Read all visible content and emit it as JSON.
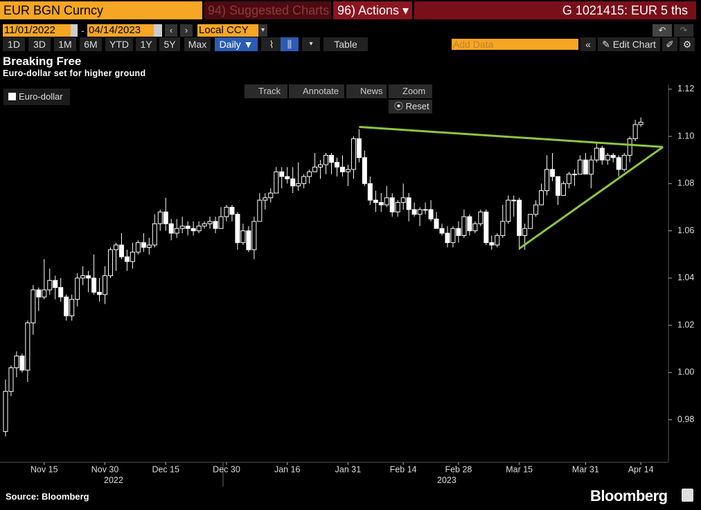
{
  "ui": {
    "security": "EUR BGN Curncy",
    "suggested": "94) Suggested Charts",
    "actions": "96) Actions ▾",
    "ticker_info": "G 1021415: EUR 5 ths",
    "start_date": "11/01/2022",
    "end_date": "04/14/2023",
    "currency": "Local CCY",
    "periods": [
      "1D",
      "3D",
      "1M",
      "6M",
      "YTD",
      "1Y",
      "5Y",
      "Max"
    ],
    "frequency": "Daily ▼",
    "table": "Table",
    "add_data": "Add Data",
    "edit_chart": "Edit Chart",
    "tools": [
      "Track",
      "Annotate",
      "News",
      "Zoom"
    ],
    "reset": "Reset"
  },
  "chart_data": {
    "type": "candlestick",
    "title": "Breaking Free",
    "subtitle": "Euro-dollar set for higher ground",
    "source": "Source: Bloomberg",
    "brand": "Bloomberg",
    "name": "Euro-dollar",
    "color": "#ffffff",
    "x_year_labels": [
      "2022",
      "2023"
    ],
    "xlim": [
      "2022-11-03",
      "2023-04-21"
    ],
    "xticks": [
      {
        "value": "2022-11-15",
        "label": "Nov 15"
      },
      {
        "value": "2022-11-30",
        "label": "Nov 30"
      },
      {
        "value": "2022-12-15",
        "label": "Dec 15"
      },
      {
        "value": "2022-12-30",
        "label": "Dec 30"
      },
      {
        "value": "2023-01-16",
        "label": "Jan 16"
      },
      {
        "value": "2023-01-31",
        "label": "Jan 31"
      },
      {
        "value": "2023-02-14",
        "label": "Feb 14"
      },
      {
        "value": "2023-02-28",
        "label": "Feb 28"
      },
      {
        "value": "2023-03-15",
        "label": "Mar 15"
      },
      {
        "value": "2023-03-31",
        "label": "Mar 31"
      },
      {
        "value": "2023-04-14",
        "label": "Apr 14"
      }
    ],
    "ylim": [
      0.962,
      1.122
    ],
    "yticks": [
      0.98,
      {
        "value": 1.0,
        "label": "1.00"
      },
      1.02,
      1.04,
      1.06,
      1.08,
      {
        "value": 1.1,
        "label": "1.10"
      },
      1.12
    ],
    "x": [
      "2022-11-04",
      "2022-11-07",
      "2022-11-08",
      "2022-11-09",
      "2022-11-10",
      "2022-11-11",
      "2022-11-14",
      "2022-11-15",
      "2022-11-16",
      "2022-11-17",
      "2022-11-18",
      "2022-11-21",
      "2022-11-22",
      "2022-11-23",
      "2022-11-24",
      "2022-11-25",
      "2022-11-28",
      "2022-11-29",
      "2022-11-30",
      "2022-12-01",
      "2022-12-02",
      "2022-12-05",
      "2022-12-06",
      "2022-12-07",
      "2022-12-08",
      "2022-12-09",
      "2022-12-12",
      "2022-12-13",
      "2022-12-14",
      "2022-12-15",
      "2022-12-16",
      "2022-12-19",
      "2022-12-20",
      "2022-12-21",
      "2022-12-22",
      "2022-12-23",
      "2022-12-26",
      "2022-12-27",
      "2022-12-28",
      "2022-12-29",
      "2022-12-30",
      "2023-01-02",
      "2023-01-03",
      "2023-01-04",
      "2023-01-05",
      "2023-01-06",
      "2023-01-09",
      "2023-01-10",
      "2023-01-11",
      "2023-01-12",
      "2023-01-13",
      "2023-01-16",
      "2023-01-17",
      "2023-01-18",
      "2023-01-19",
      "2023-01-20",
      "2023-01-23",
      "2023-01-24",
      "2023-01-25",
      "2023-01-26",
      "2023-01-27",
      "2023-01-30",
      "2023-01-31",
      "2023-02-01",
      "2023-02-02",
      "2023-02-03",
      "2023-02-06",
      "2023-02-07",
      "2023-02-08",
      "2023-02-09",
      "2023-02-10",
      "2023-02-13",
      "2023-02-14",
      "2023-02-15",
      "2023-02-16",
      "2023-02-17",
      "2023-02-20",
      "2023-02-21",
      "2023-02-22",
      "2023-02-23",
      "2023-02-24",
      "2023-02-27",
      "2023-02-28",
      "2023-03-01",
      "2023-03-02",
      "2023-03-03",
      "2023-03-06",
      "2023-03-07",
      "2023-03-08",
      "2023-03-09",
      "2023-03-10",
      "2023-03-13",
      "2023-03-14",
      "2023-03-15",
      "2023-03-16",
      "2023-03-17",
      "2023-03-20",
      "2023-03-21",
      "2023-03-22",
      "2023-03-23",
      "2023-03-24",
      "2023-03-27",
      "2023-03-28",
      "2023-03-29",
      "2023-03-30",
      "2023-03-31",
      "2023-04-03",
      "2023-04-04",
      "2023-04-05",
      "2023-04-06",
      "2023-04-07",
      "2023-04-10",
      "2023-04-11",
      "2023-04-12",
      "2023-04-13",
      "2023-04-14"
    ],
    "ohlc": [
      [
        0.975,
        0.997,
        0.973,
        0.992
      ],
      [
        0.992,
        1.003,
        0.99,
        1.002
      ],
      [
        1.002,
        1.009,
        0.998,
        1.007
      ],
      [
        1.007,
        1.008,
        1.0,
        1.001
      ],
      [
        1.001,
        1.022,
        0.996,
        1.021
      ],
      [
        1.021,
        1.037,
        1.016,
        1.035
      ],
      [
        1.035,
        1.036,
        1.026,
        1.032
      ],
      [
        1.032,
        1.048,
        1.031,
        1.035
      ],
      [
        1.035,
        1.044,
        1.033,
        1.039
      ],
      [
        1.039,
        1.041,
        1.031,
        1.036
      ],
      [
        1.036,
        1.04,
        1.03,
        1.032
      ],
      [
        1.032,
        1.033,
        1.022,
        1.024
      ],
      [
        1.024,
        1.033,
        1.022,
        1.031
      ],
      [
        1.031,
        1.042,
        1.028,
        1.04
      ],
      [
        1.04,
        1.045,
        1.037,
        1.041
      ],
      [
        1.041,
        1.043,
        1.034,
        1.04
      ],
      [
        1.04,
        1.05,
        1.033,
        1.034
      ],
      [
        1.034,
        1.04,
        1.03,
        1.033
      ],
      [
        1.033,
        1.045,
        1.029,
        1.041
      ],
      [
        1.041,
        1.053,
        1.04,
        1.052
      ],
      [
        1.052,
        1.055,
        1.043,
        1.054
      ],
      [
        1.054,
        1.059,
        1.048,
        1.049
      ],
      [
        1.049,
        1.052,
        1.043,
        1.047
      ],
      [
        1.047,
        1.055,
        1.044,
        1.051
      ],
      [
        1.051,
        1.056,
        1.05,
        1.055
      ],
      [
        1.055,
        1.059,
        1.051,
        1.053
      ],
      [
        1.053,
        1.057,
        1.05,
        1.054
      ],
      [
        1.054,
        1.067,
        1.053,
        1.063
      ],
      [
        1.063,
        1.069,
        1.06,
        1.068
      ],
      [
        1.068,
        1.074,
        1.06,
        1.063
      ],
      [
        1.063,
        1.065,
        1.056,
        1.059
      ],
      [
        1.059,
        1.065,
        1.057,
        1.061
      ],
      [
        1.061,
        1.066,
        1.059,
        1.062
      ],
      [
        1.062,
        1.064,
        1.058,
        1.061
      ],
      [
        1.061,
        1.064,
        1.058,
        1.06
      ],
      [
        1.06,
        1.064,
        1.059,
        1.062
      ],
      [
        1.062,
        1.064,
        1.061,
        1.063
      ],
      [
        1.063,
        1.066,
        1.061,
        1.064
      ],
      [
        1.064,
        1.066,
        1.059,
        1.061
      ],
      [
        1.061,
        1.07,
        1.061,
        1.066
      ],
      [
        1.066,
        1.071,
        1.064,
        1.07
      ],
      [
        1.07,
        1.071,
        1.064,
        1.067
      ],
      [
        1.067,
        1.068,
        1.052,
        1.055
      ],
      [
        1.055,
        1.063,
        1.054,
        1.06
      ],
      [
        1.06,
        1.062,
        1.051,
        1.052
      ],
      [
        1.052,
        1.066,
        1.048,
        1.064
      ],
      [
        1.064,
        1.076,
        1.064,
        1.073
      ],
      [
        1.073,
        1.076,
        1.069,
        1.074
      ],
      [
        1.074,
        1.078,
        1.072,
        1.076
      ],
      [
        1.076,
        1.087,
        1.077,
        1.085
      ],
      [
        1.085,
        1.087,
        1.078,
        1.083
      ],
      [
        1.083,
        1.087,
        1.08,
        1.082
      ],
      [
        1.082,
        1.087,
        1.076,
        1.079
      ],
      [
        1.079,
        1.089,
        1.077,
        1.08
      ],
      [
        1.08,
        1.084,
        1.078,
        1.083
      ],
      [
        1.083,
        1.086,
        1.08,
        1.085
      ],
      [
        1.085,
        1.093,
        1.085,
        1.087
      ],
      [
        1.087,
        1.09,
        1.082,
        1.088
      ],
      [
        1.088,
        1.093,
        1.084,
        1.092
      ],
      [
        1.092,
        1.093,
        1.084,
        1.089
      ],
      [
        1.089,
        1.091,
        1.083,
        1.087
      ],
      [
        1.087,
        1.092,
        1.083,
        1.085
      ],
      [
        1.085,
        1.088,
        1.079,
        1.086
      ],
      [
        1.086,
        1.1,
        1.082,
        1.099
      ],
      [
        1.099,
        1.103,
        1.089,
        1.091
      ],
      [
        1.091,
        1.094,
        1.079,
        1.08
      ],
      [
        1.08,
        1.083,
        1.071,
        1.073
      ],
      [
        1.073,
        1.077,
        1.068,
        1.072
      ],
      [
        1.072,
        1.076,
        1.068,
        1.071
      ],
      [
        1.071,
        1.079,
        1.07,
        1.074
      ],
      [
        1.074,
        1.076,
        1.066,
        1.068
      ],
      [
        1.068,
        1.073,
        1.066,
        1.072
      ],
      [
        1.072,
        1.08,
        1.069,
        1.074
      ],
      [
        1.074,
        1.076,
        1.064,
        1.069
      ],
      [
        1.069,
        1.072,
        1.066,
        1.067
      ],
      [
        1.067,
        1.07,
        1.062,
        1.069
      ],
      [
        1.069,
        1.072,
        1.067,
        1.069
      ],
      [
        1.069,
        1.073,
        1.064,
        1.065
      ],
      [
        1.065,
        1.068,
        1.061,
        1.061
      ],
      [
        1.061,
        1.063,
        1.058,
        1.059
      ],
      [
        1.059,
        1.062,
        1.053,
        1.055
      ],
      [
        1.055,
        1.062,
        1.053,
        1.061
      ],
      [
        1.061,
        1.064,
        1.055,
        1.058
      ],
      [
        1.058,
        1.069,
        1.057,
        1.066
      ],
      [
        1.066,
        1.067,
        1.058,
        1.06
      ],
      [
        1.06,
        1.064,
        1.059,
        1.063
      ],
      [
        1.063,
        1.069,
        1.062,
        1.068
      ],
      [
        1.068,
        1.069,
        1.054,
        1.055
      ],
      [
        1.055,
        1.058,
        1.052,
        1.054
      ],
      [
        1.054,
        1.059,
        1.053,
        1.058
      ],
      [
        1.058,
        1.071,
        1.057,
        1.064
      ],
      [
        1.064,
        1.075,
        1.063,
        1.073
      ],
      [
        1.073,
        1.075,
        1.066,
        1.073
      ],
      [
        1.073,
        1.074,
        1.052,
        1.058
      ],
      [
        1.058,
        1.063,
        1.052,
        1.061
      ],
      [
        1.061,
        1.067,
        1.061,
        1.067
      ],
      [
        1.067,
        1.073,
        1.066,
        1.071
      ],
      [
        1.071,
        1.08,
        1.072,
        1.077
      ],
      [
        1.077,
        1.092,
        1.075,
        1.086
      ],
      [
        1.086,
        1.093,
        1.081,
        1.083
      ],
      [
        1.083,
        1.083,
        1.071,
        1.075
      ],
      [
        1.075,
        1.081,
        1.076,
        1.08
      ],
      [
        1.08,
        1.085,
        1.078,
        1.084
      ],
      [
        1.084,
        1.086,
        1.079,
        1.084
      ],
      [
        1.084,
        1.092,
        1.084,
        1.09
      ],
      [
        1.09,
        1.093,
        1.084,
        1.084
      ],
      [
        1.084,
        1.092,
        1.078,
        1.09
      ],
      [
        1.09,
        1.097,
        1.089,
        1.095
      ],
      [
        1.095,
        1.096,
        1.088,
        1.09
      ],
      [
        1.09,
        1.093,
        1.088,
        1.092
      ],
      [
        1.092,
        1.093,
        1.089,
        1.091
      ],
      [
        1.091,
        1.092,
        1.083,
        1.086
      ],
      [
        1.086,
        1.093,
        1.085,
        1.092
      ],
      [
        1.092,
        1.1,
        1.089,
        1.099
      ],
      [
        1.099,
        1.107,
        1.098,
        1.105
      ],
      [
        1.105,
        1.108,
        1.104,
        1.106
      ]
    ],
    "trendlines": [
      {
        "color": "#8dc63f",
        "points": [
          [
            "2023-02-02",
            1.104
          ],
          [
            "2023-04-20",
            1.0955
          ]
        ]
      },
      {
        "color": "#8dc63f",
        "points": [
          [
            "2023-03-15",
            1.0525
          ],
          [
            "2023-04-20",
            1.0955
          ]
        ]
      }
    ]
  }
}
